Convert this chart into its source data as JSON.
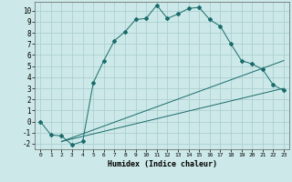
{
  "xlabel": "Humidex (Indice chaleur)",
  "ylabel": "",
  "bg_color": "#cce8e8",
  "line_color": "#1a6b6b",
  "grid_color": "#a8cccc",
  "ylim": [
    -2.5,
    10.8
  ],
  "xlim": [
    -0.5,
    23.5
  ],
  "yticks": [
    -2,
    -1,
    0,
    1,
    2,
    3,
    4,
    5,
    6,
    7,
    8,
    9,
    10
  ],
  "xticks": [
    0,
    1,
    2,
    3,
    4,
    5,
    6,
    7,
    8,
    9,
    10,
    11,
    12,
    13,
    14,
    15,
    16,
    17,
    18,
    19,
    20,
    21,
    22,
    23
  ],
  "main_curve_x": [
    0,
    1,
    2,
    3,
    4,
    5,
    6,
    7,
    8,
    9,
    10,
    11,
    12,
    13,
    14,
    15,
    16,
    17,
    18,
    19,
    20,
    21,
    22,
    23
  ],
  "main_curve_y": [
    0.0,
    -1.2,
    -1.3,
    -2.1,
    -1.8,
    3.5,
    5.5,
    7.3,
    8.1,
    9.2,
    9.3,
    10.5,
    9.3,
    9.7,
    10.2,
    10.3,
    9.2,
    8.6,
    7.0,
    5.5,
    5.2,
    4.7,
    3.3,
    2.8
  ],
  "line2_x": [
    2,
    23
  ],
  "line2_y": [
    -1.8,
    5.5
  ],
  "line3_x": [
    2,
    23
  ],
  "line3_y": [
    -1.8,
    3.0
  ],
  "marker": "D",
  "markersize": 2.0
}
